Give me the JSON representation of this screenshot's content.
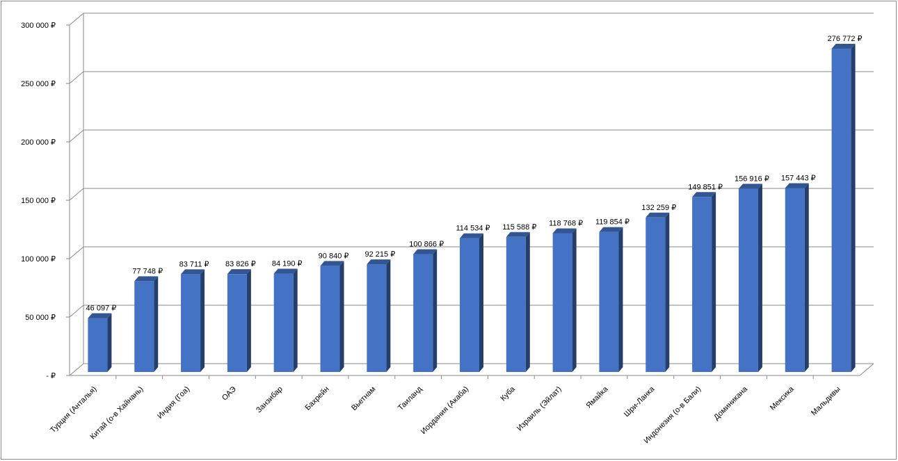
{
  "chart_data": {
    "type": "bar",
    "title": "",
    "xlabel": "",
    "ylabel": "",
    "ylim": [
      0,
      300000
    ],
    "yticks": [
      0,
      50000,
      100000,
      150000,
      200000,
      250000,
      300000
    ],
    "ytick_labels": [
      "-  ₽",
      "50 000 ₽",
      "100 000 ₽",
      "150 000 ₽",
      "200 000 ₽",
      "250 000 ₽",
      "300 000 ₽"
    ],
    "grid": true,
    "legend": "none",
    "style": "3d-columns",
    "bar_color": "#4472C4",
    "categories": [
      "Турция (Анталья)",
      "Китай (о-в Хайнань)",
      "Индия (Гоа)",
      "ОАЭ",
      "Занзибар",
      "Бахрейн",
      "Вьетнам",
      "Таиланд",
      "Иордания (Акаба)",
      "Куба",
      "Израиль (Эйлат)",
      "Ямайка",
      "Шри-Ланка",
      "Индонезия (о-в Бали)",
      "Доминикана",
      "Мексика",
      "Мальдивы"
    ],
    "values": [
      46097,
      77748,
      83711,
      83826,
      84190,
      90840,
      92215,
      100866,
      114534,
      115588,
      118768,
      119854,
      132259,
      149851,
      156916,
      157443,
      276772
    ],
    "data_labels": [
      "46 097 ₽",
      "77 748 ₽",
      "83 711 ₽",
      "83 826 ₽",
      "84 190 ₽",
      "90 840 ₽",
      "92 215 ₽",
      "100 866 ₽",
      "114 534 ₽",
      "115 588 ₽",
      "118 768 ₽",
      "119 854 ₽",
      "132 259 ₽",
      "149 851 ₽",
      "156 916 ₽",
      "157 443 ₽",
      "276 772 ₽"
    ]
  }
}
